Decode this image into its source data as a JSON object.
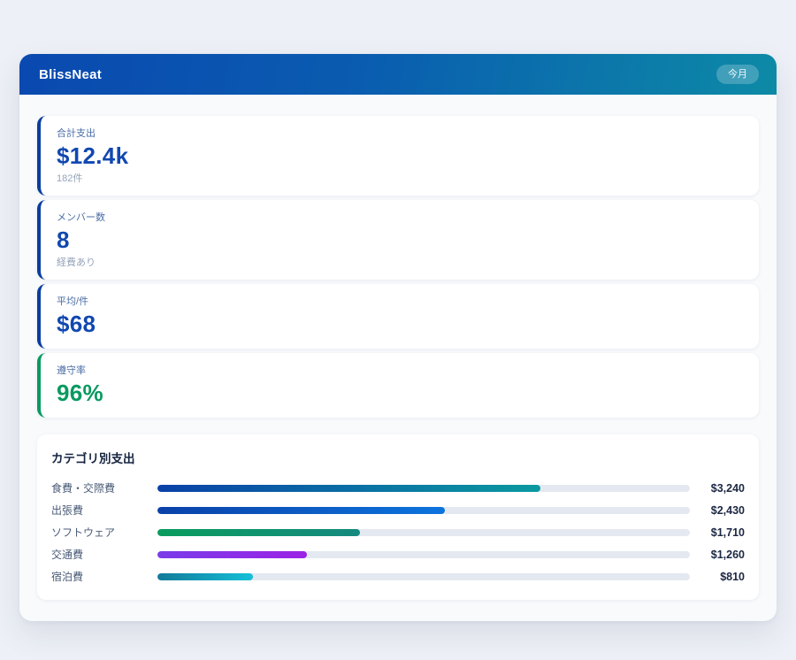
{
  "header": {
    "title": "BlissNeat",
    "period_badge": "今月"
  },
  "stats": [
    {
      "label": "合計支出",
      "value": "$12.4k",
      "sub": "182件",
      "accent_color": "#0a3d9e",
      "value_color": "#1148b0"
    },
    {
      "label": "メンバー数",
      "value": "8",
      "sub": "経費あり",
      "accent_color": "#0a3d9e",
      "value_color": "#1148b0"
    },
    {
      "label": "平均/件",
      "value": "$68",
      "sub": "",
      "accent_color": "#0a3d9e",
      "value_color": "#1148b0"
    },
    {
      "label": "遵守率",
      "value": "96%",
      "sub": "",
      "accent_color": "#089a60",
      "value_color": "#089a60"
    }
  ],
  "categories": {
    "title": "カテゴリ別支出",
    "track_color": "#e4e9f1",
    "rows": [
      {
        "label": "食費・交際費",
        "value": "$3,240",
        "percent": 72,
        "gradient_start": "#0a41a8",
        "gradient_end": "#0a9aa0"
      },
      {
        "label": "出張費",
        "value": "$2,430",
        "percent": 54,
        "gradient_start": "#0a41a8",
        "gradient_end": "#0d74dd"
      },
      {
        "label": "ソフトウェア",
        "value": "$1,710",
        "percent": 38,
        "gradient_start": "#0a9c5e",
        "gradient_end": "#15897f"
      },
      {
        "label": "交通費",
        "value": "$1,260",
        "percent": 28,
        "gradient_start": "#7a3ce8",
        "gradient_end": "#9b22e6"
      },
      {
        "label": "宿泊費",
        "value": "$810",
        "percent": 18,
        "gradient_start": "#117a9a",
        "gradient_end": "#15c0d8"
      }
    ]
  },
  "chart_data": {
    "type": "bar",
    "title": "カテゴリ別支出",
    "categories": [
      "食費・交際費",
      "出張費",
      "ソフトウェア",
      "交通費",
      "宿泊費"
    ],
    "values": [
      3240,
      2430,
      1710,
      1260,
      810
    ],
    "value_labels": [
      "$3,240",
      "$2,430",
      "$1,710",
      "$1,260",
      "$810"
    ],
    "orientation": "horizontal",
    "xlim": [
      0,
      4500
    ],
    "xlabel": "",
    "ylabel": "",
    "grid": false,
    "legend": false
  }
}
